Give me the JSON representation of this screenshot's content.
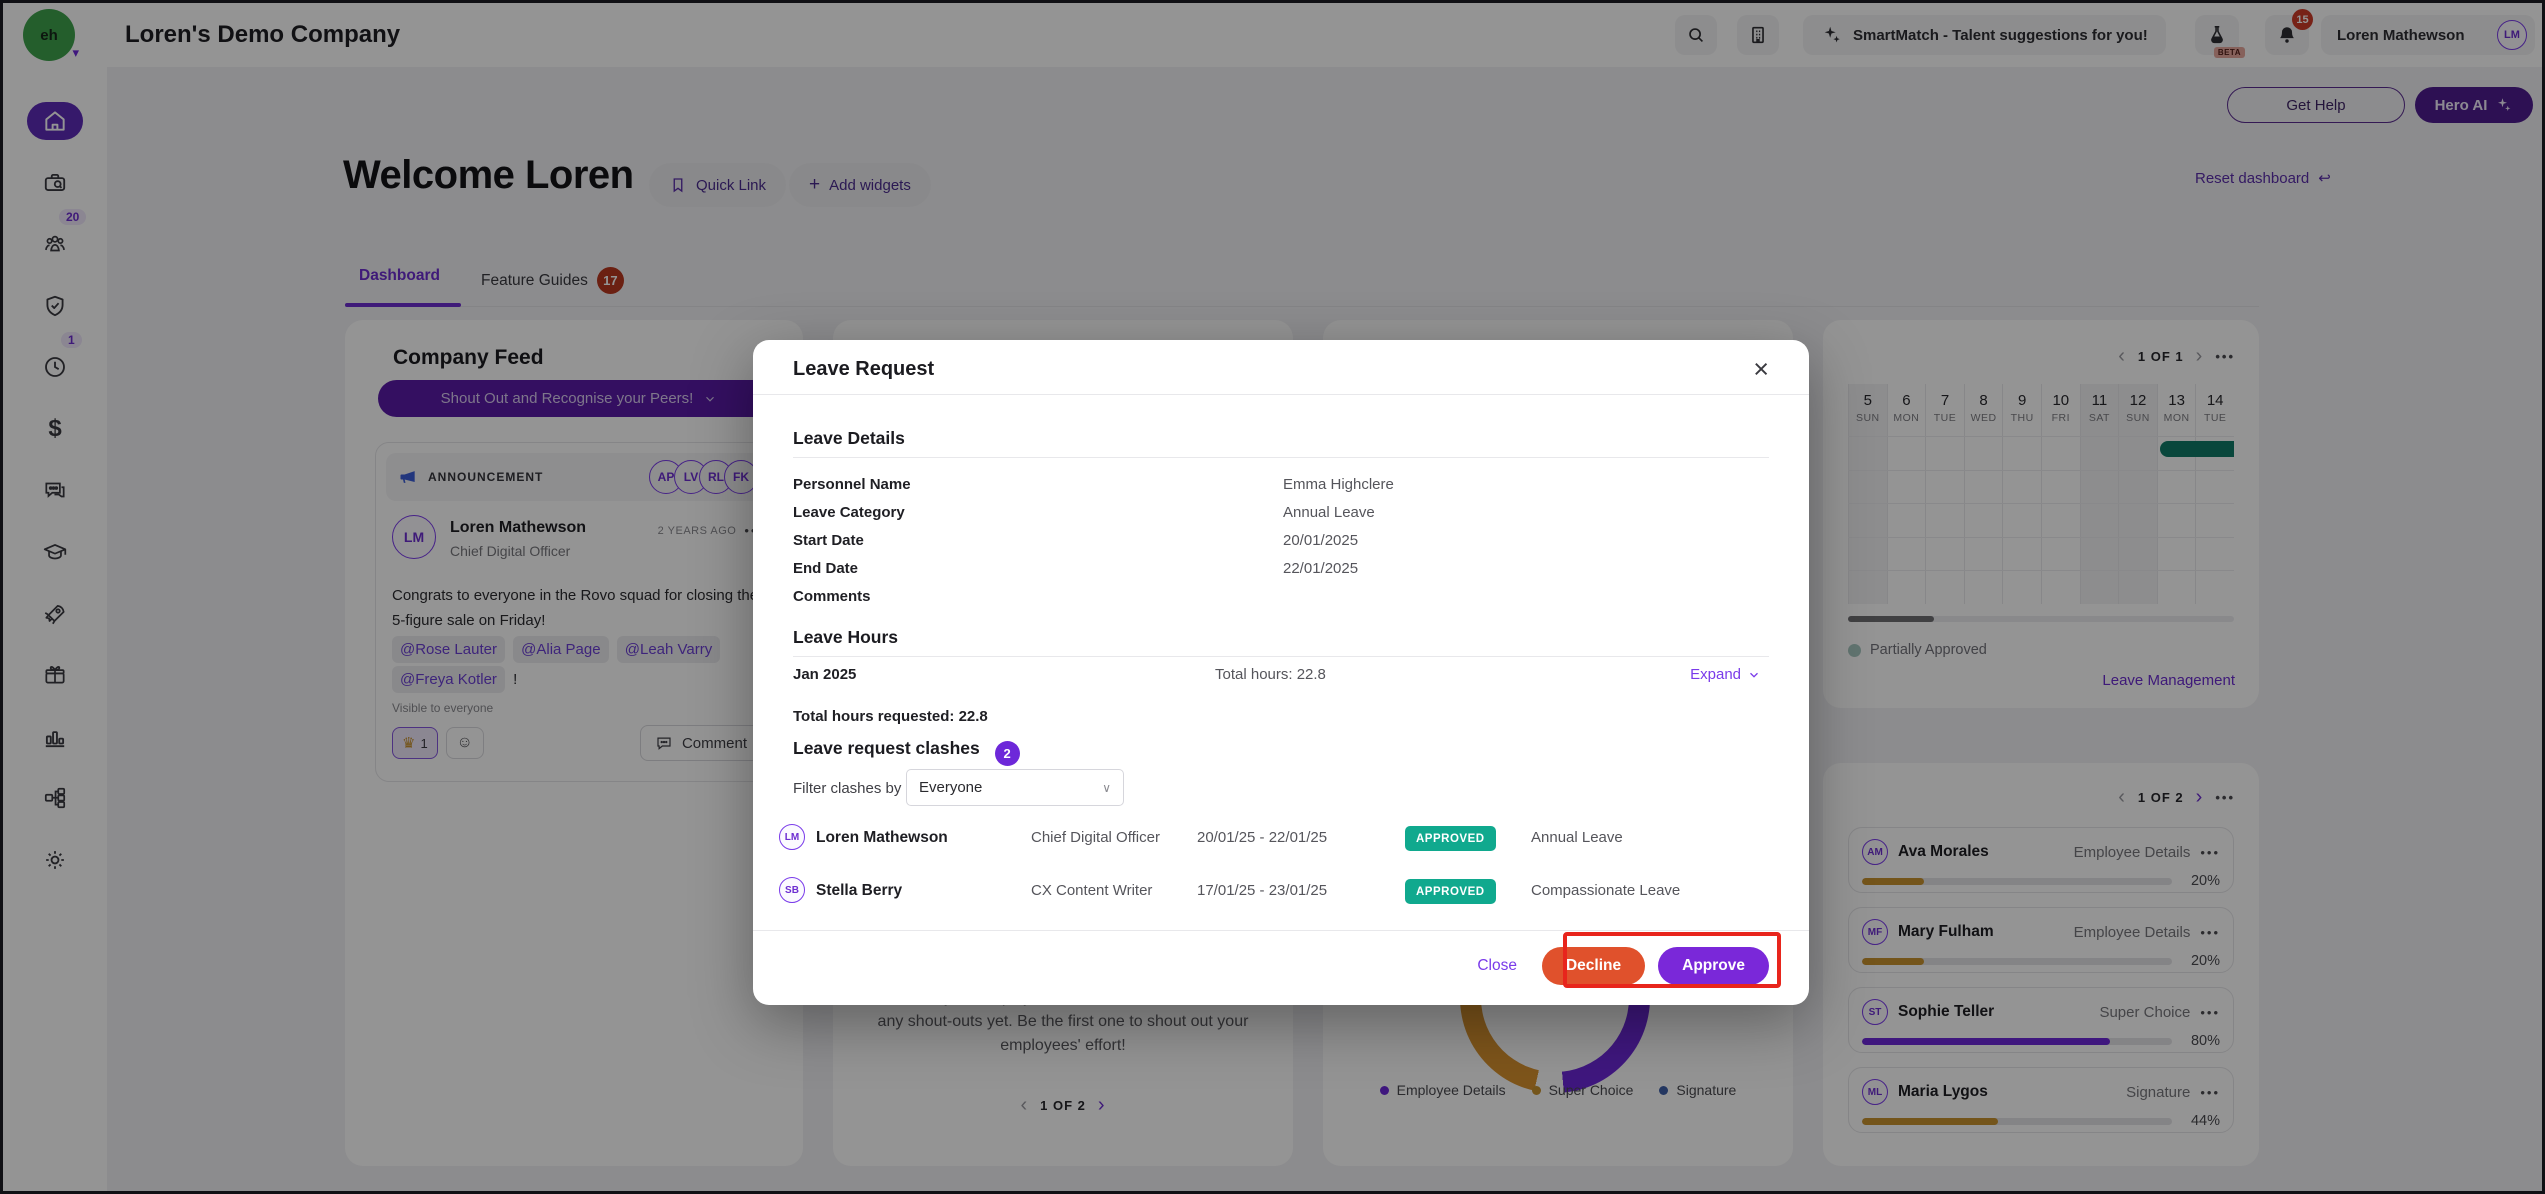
{
  "theme": {
    "primary_purple": "#6D28D9",
    "link_purple": "#7A3BEA",
    "banner_purple": "#5A1BA8",
    "decline_red": "#E0512C",
    "approved_teal": "#10A98E",
    "calendar_bar_teal": "#117A68",
    "annotation_red": "#E8251C",
    "progress_orange": "#C9932F",
    "badge_red": "#B8371F"
  },
  "topbar": {
    "company_name": "Loren's Demo Company",
    "smartmatch_label": "SmartMatch - Talent suggestions for you!",
    "beta_label": "BETA",
    "notification_count": "15",
    "user_name": "Loren Mathewson",
    "user_initials": "LM"
  },
  "sidebar": {
    "items": [
      {
        "icon": "home",
        "active": true
      },
      {
        "icon": "recruitment-briefcase-search"
      },
      {
        "icon": "people",
        "badge": "20"
      },
      {
        "icon": "compliance-shield-check"
      },
      {
        "icon": "time-clock",
        "badge": "1"
      },
      {
        "icon": "payroll-dollar",
        "glyph": "$"
      },
      {
        "icon": "messages-chat"
      },
      {
        "icon": "learning-graduation-cap"
      },
      {
        "icon": "growth-rocket"
      },
      {
        "icon": "benefits-gift"
      },
      {
        "icon": "reports-bar-chart"
      },
      {
        "icon": "org-structure"
      },
      {
        "icon": "settings-gear"
      }
    ]
  },
  "header": {
    "welcome": "Welcome Loren",
    "quick_link": "Quick Link",
    "add_widgets": "Add widgets",
    "add_widgets_plus": "+",
    "reset_dashboard": "Reset dashboard",
    "get_help": "Get Help",
    "hero_ai": "Hero AI"
  },
  "tabs": {
    "dashboard": "Dashboard",
    "feature_guides": "Feature Guides",
    "feature_guides_count": "17"
  },
  "company_feed": {
    "title": "Company Feed",
    "banner": "Shout Out and Recognise your Peers!",
    "announcement_label": "ANNOUNCEMENT",
    "announcement_avatars": [
      "AP",
      "LV",
      "RL",
      "FK"
    ],
    "post": {
      "author": "Loren Mathewson",
      "author_initials": "LM",
      "role": "Chief Digital Officer",
      "timestamp": "2 YEARS AGO",
      "more": "•••",
      "body": "Congrats to everyone in the Rovo squad for closing the 5-figure sale on Friday!",
      "mentions": [
        "@Rose Lauter",
        "@Alia Page",
        "@Leah Varry",
        "@Freya Kotler"
      ],
      "after_mentions": "!",
      "visibility": "Visible to everyone",
      "reaction_count": "1",
      "comment_label": "Comment"
    }
  },
  "shoutout_widget": {
    "empty_text": "Looks like your employees haven't sent out or received any shout-outs yet. Be the first one to shout out your employees' effort!",
    "pagination": "1 OF 2"
  },
  "donut_widget": {
    "legend": [
      {
        "label": "Employee Details",
        "color": "#6D28D9"
      },
      {
        "label": "Super Choice",
        "color": "#C9932F"
      },
      {
        "label": "Signature",
        "color": "#3F5FA8"
      }
    ]
  },
  "leave_calendar": {
    "pagination": "1 OF 1",
    "days": [
      {
        "num": "5",
        "name": "SUN",
        "weekend": true
      },
      {
        "num": "6",
        "name": "MON",
        "weekend": false
      },
      {
        "num": "7",
        "name": "TUE",
        "weekend": false
      },
      {
        "num": "8",
        "name": "WED",
        "weekend": false
      },
      {
        "num": "9",
        "name": "THU",
        "weekend": false
      },
      {
        "num": "10",
        "name": "FRI",
        "weekend": false
      },
      {
        "num": "11",
        "name": "SAT",
        "weekend": true
      },
      {
        "num": "12",
        "name": "SUN",
        "weekend": true
      },
      {
        "num": "13",
        "name": "MON",
        "weekend": false
      },
      {
        "num": "14",
        "name": "TUE",
        "weekend": false
      }
    ],
    "legend": "Partially Approved",
    "link": "Leave Management"
  },
  "onboarding_widget": {
    "pagination": "1 OF 2",
    "employees": [
      {
        "initials": "AM",
        "name": "Ava Morales",
        "widget": "Employee Details",
        "more": "•••",
        "percent": "20%",
        "color": "#C9932F"
      },
      {
        "initials": "MF",
        "name": "Mary Fulham",
        "widget": "Employee Details",
        "more": "•••",
        "percent": "20%",
        "color": "#C9932F"
      },
      {
        "initials": "ST",
        "name": "Sophie Teller",
        "widget": "Super Choice",
        "more": "•••",
        "percent": "80%",
        "color": "#6D28D9"
      },
      {
        "initials": "ML",
        "name": "Maria Lygos",
        "widget": "Signature",
        "more": "•••",
        "percent": "44%",
        "color": "#C9932F"
      }
    ]
  },
  "modal": {
    "title": "Leave Request",
    "sections": {
      "details": "Leave Details",
      "hours": "Leave Hours",
      "clashes": "Leave request clashes"
    },
    "fields": [
      {
        "label": "Personnel Name",
        "value": "Emma Highclere"
      },
      {
        "label": "Leave Category",
        "value": "Annual Leave"
      },
      {
        "label": "Start Date",
        "value": "20/01/2025"
      },
      {
        "label": "End Date",
        "value": "22/01/2025"
      },
      {
        "label": "Comments",
        "value": ""
      }
    ],
    "hours": {
      "month": "Jan 2025",
      "total": "Total hours: 22.8",
      "expand": "Expand",
      "total_requested": "Total hours requested: 22.8"
    },
    "clash_count": "2",
    "filter_label": "Filter clashes by",
    "filter_value": "Everyone",
    "clashes": [
      {
        "initials": "LM",
        "name": "Loren Mathewson",
        "role": "Chief Digital Officer",
        "dates": "20/01/25 - 22/01/25",
        "status": "APPROVED",
        "type": "Annual Leave"
      },
      {
        "initials": "SB",
        "name": "Stella Berry",
        "role": "CX Content Writer",
        "dates": "17/01/25 - 23/01/25",
        "status": "APPROVED",
        "type": "Compassionate Leave"
      }
    ],
    "footer": {
      "close": "Close",
      "decline": "Decline",
      "approve": "Approve"
    }
  }
}
